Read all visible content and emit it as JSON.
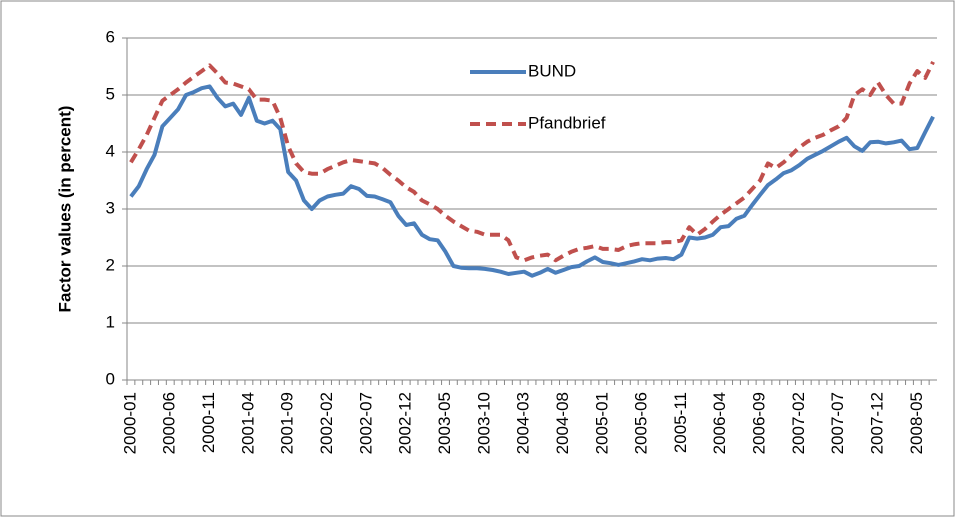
{
  "chart_data": {
    "type": "line",
    "y_label": "Factor values (in percent)",
    "categories": [
      "2000-01",
      null,
      null,
      null,
      null,
      "2000-06",
      null,
      null,
      null,
      null,
      "2000-11",
      null,
      null,
      null,
      null,
      "2001-04",
      null,
      null,
      null,
      null,
      "2001-09",
      null,
      null,
      null,
      null,
      "2002-02",
      null,
      null,
      null,
      null,
      "2002-07",
      null,
      null,
      null,
      null,
      "2002-12",
      null,
      null,
      null,
      null,
      "2003-05",
      null,
      null,
      null,
      null,
      "2003-10",
      null,
      null,
      null,
      null,
      "2004-03",
      null,
      null,
      null,
      null,
      "2004-08",
      null,
      null,
      null,
      null,
      "2005-01",
      null,
      null,
      null,
      null,
      "2005-06",
      null,
      null,
      null,
      null,
      "2005-11",
      null,
      null,
      null,
      null,
      "2006-04",
      null,
      null,
      null,
      null,
      "2006-09",
      null,
      null,
      null,
      null,
      "2007-02",
      null,
      null,
      null,
      null,
      "2007-07",
      null,
      null,
      null,
      null,
      "2007-12",
      null,
      null,
      null,
      null,
      "2008-05",
      null,
      null
    ],
    "series": [
      {
        "name": "BUND",
        "color": "#4a7ebb",
        "dash": false,
        "values": [
          3.22,
          3.4,
          3.7,
          3.95,
          4.45,
          4.6,
          4.75,
          5.0,
          5.05,
          5.12,
          5.15,
          4.95,
          4.8,
          4.85,
          4.65,
          4.95,
          4.55,
          4.5,
          4.55,
          4.4,
          3.65,
          3.5,
          3.15,
          3.0,
          3.15,
          3.22,
          3.25,
          3.27,
          3.4,
          3.35,
          3.23,
          3.22,
          3.17,
          3.12,
          2.88,
          2.72,
          2.75,
          2.55,
          2.47,
          2.45,
          2.25,
          2.0,
          1.97,
          1.96,
          1.96,
          1.95,
          1.93,
          1.9,
          1.86,
          1.88,
          1.9,
          1.83,
          1.88,
          1.95,
          1.88,
          1.93,
          1.98,
          2.0,
          2.08,
          2.15,
          2.07,
          2.05,
          2.02,
          2.05,
          2.08,
          2.12,
          2.1,
          2.13,
          2.14,
          2.12,
          2.2,
          2.5,
          2.48,
          2.5,
          2.55,
          2.68,
          2.7,
          2.83,
          2.88,
          3.07,
          3.25,
          3.42,
          3.52,
          3.63,
          3.68,
          3.77,
          3.88,
          3.95,
          4.02,
          4.1,
          4.18,
          4.25,
          4.1,
          4.02,
          4.17,
          4.18,
          4.15,
          4.17,
          4.2,
          4.05,
          4.07,
          4.35,
          4.62
        ]
      },
      {
        "name": "Pfandbrief",
        "color": "#c0504d",
        "dash": true,
        "values": [
          3.82,
          4.05,
          4.3,
          4.6,
          4.9,
          5.0,
          5.1,
          5.22,
          5.32,
          5.42,
          5.52,
          5.38,
          5.22,
          5.2,
          5.15,
          5.1,
          4.92,
          4.92,
          4.9,
          4.6,
          4.1,
          3.8,
          3.65,
          3.62,
          3.62,
          3.7,
          3.76,
          3.82,
          3.86,
          3.84,
          3.82,
          3.8,
          3.72,
          3.6,
          3.5,
          3.38,
          3.3,
          3.15,
          3.08,
          3.0,
          2.88,
          2.78,
          2.7,
          2.62,
          2.6,
          2.55,
          2.55,
          2.55,
          2.45,
          2.15,
          2.1,
          2.15,
          2.18,
          2.2,
          2.1,
          2.18,
          2.25,
          2.3,
          2.32,
          2.35,
          2.3,
          2.3,
          2.28,
          2.35,
          2.38,
          2.4,
          2.4,
          2.4,
          2.42,
          2.42,
          2.45,
          2.68,
          2.55,
          2.65,
          2.78,
          2.9,
          3.0,
          3.1,
          3.2,
          3.35,
          3.5,
          3.8,
          3.72,
          3.82,
          3.95,
          4.08,
          4.18,
          4.25,
          4.3,
          4.38,
          4.45,
          4.6,
          5.0,
          5.1,
          5.0,
          5.22,
          5.0,
          4.85,
          4.85,
          5.2,
          5.42,
          5.3,
          5.58
        ]
      }
    ],
    "ylim": [
      0,
      6
    ],
    "yticks": [
      0,
      1,
      2,
      3,
      4,
      5,
      6
    ],
    "grid": true,
    "legend": "upper-center"
  }
}
